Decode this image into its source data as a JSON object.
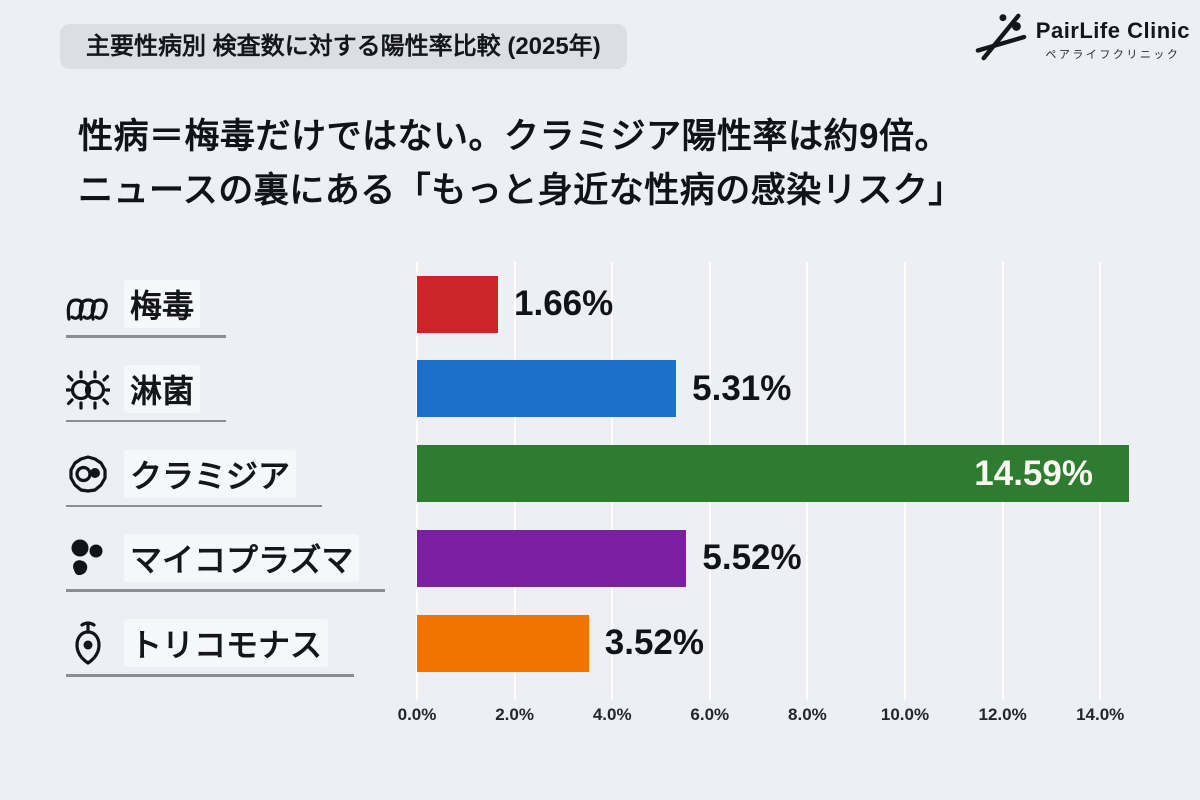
{
  "badge": {
    "title": "主要性病別 検査数に対する陽性率比較 (2025年)"
  },
  "logo": {
    "icon": "pairlife-figures-icon",
    "name": "PairLife Clinic",
    "subtitle": "ペアライフクリニック"
  },
  "headline": {
    "line1": "性病＝梅毒だけではない。クラミジア陽性率は約9倍。",
    "line2": "ニュースの裏にある「もっと身近な性病の感染リスク」"
  },
  "chart_data": {
    "type": "bar",
    "orientation": "horizontal",
    "title": "主要性病別 検査数に対する陽性率比較 (2025年)",
    "categories": [
      "梅毒",
      "淋菌",
      "クラミジア",
      "マイコプラズマ",
      "トリコモナス"
    ],
    "values": [
      1.66,
      5.31,
      14.59,
      5.52,
      3.52
    ],
    "value_labels": [
      "1.66%",
      "5.31%",
      "14.59%",
      "5.52%",
      "3.52%"
    ],
    "label_inside": [
      false,
      false,
      true,
      false,
      false
    ],
    "colors": [
      "#cc2529",
      "#1e6fc9",
      "#2d7c31",
      "#7c1fa2",
      "#f17300"
    ],
    "icons": [
      "spirochete-icon",
      "diplococcus-icon",
      "chlamydia-cell-icon",
      "mycoplasma-blobs-icon",
      "trichomonas-icon"
    ],
    "xlabel": "",
    "ylabel": "",
    "xlim": [
      0,
      14.95
    ],
    "tick_labels": [
      "0.0%",
      "2.0%",
      "4.0%",
      "6.0%",
      "8.0%",
      "10.0%",
      "12.0%",
      "14.0%"
    ],
    "tick_values": [
      0,
      2,
      4,
      6,
      8,
      10,
      12,
      14
    ],
    "grid": "vertical"
  }
}
